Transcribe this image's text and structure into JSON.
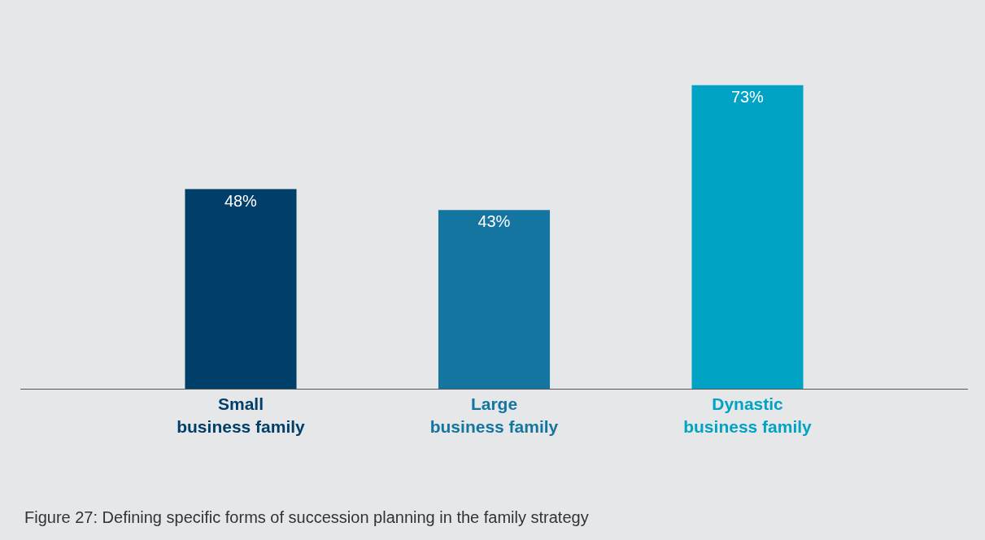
{
  "chart_data": {
    "type": "bar",
    "categories": [
      "Small\nbusiness family",
      "Large\nbusiness family",
      "Dynastic\nbusiness family"
    ],
    "values": [
      48,
      43,
      73
    ],
    "colors": [
      "#003f69",
      "#1475a1",
      "#00a3c4"
    ],
    "value_labels": [
      "48%",
      "43%",
      "73%"
    ],
    "annotations": [
      "Figure 27: Defining specific forms of succession planning in the family strategy"
    ]
  }
}
